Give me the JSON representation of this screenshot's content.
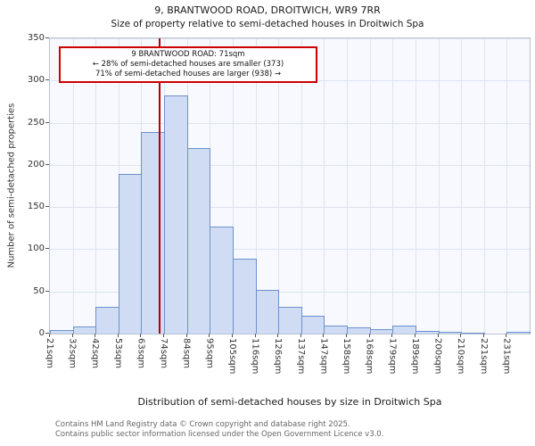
{
  "title": {
    "line1": "9, BRANTWOOD ROAD, DROITWICH, WR9 7RR",
    "line2": "Size of property relative to semi-detached houses in Droitwich Spa"
  },
  "annotation": {
    "line1": "9 BRANTWOOD ROAD: 71sqm",
    "line2": "← 28% of semi-detached houses are smaller (373)",
    "line3": "71% of semi-detached houses are larger (938) →"
  },
  "footer": {
    "line1": "Contains HM Land Registry data © Crown copyright and database right 2025.",
    "line2": "Contains public sector information licensed under the Open Government Licence v3.0."
  },
  "chart_data": {
    "type": "bar",
    "title": "9, BRANTWOOD ROAD, DROITWICH, WR9 7RR — Size of property relative to semi-detached houses in Droitwich Spa",
    "xlabel": "Distribution of semi-detached houses by size in Droitwich Spa",
    "ylabel": "Number of semi-detached properties",
    "categories": [
      "21sqm",
      "32sqm",
      "42sqm",
      "53sqm",
      "63sqm",
      "74sqm",
      "84sqm",
      "95sqm",
      "105sqm",
      "116sqm",
      "126sqm",
      "137sqm",
      "147sqm",
      "158sqm",
      "168sqm",
      "179sqm",
      "189sqm",
      "200sqm",
      "210sqm",
      "221sqm",
      "231sqm"
    ],
    "values": [
      4,
      8,
      32,
      189,
      239,
      282,
      220,
      127,
      89,
      52,
      32,
      21,
      10,
      7,
      5,
      10,
      3,
      2,
      1,
      0,
      2
    ],
    "ylim": [
      0,
      350
    ],
    "yticks": [
      0,
      50,
      100,
      150,
      200,
      250,
      300,
      350
    ],
    "grid": true,
    "legend": "none",
    "marker": {
      "value_sqm": 71,
      "label": "71sqm",
      "color": "#b30000",
      "smaller_pct": 28,
      "smaller_count": 373,
      "larger_pct": 71,
      "larger_count": 938
    },
    "bin_start_sqm": 21,
    "bin_width_sqm": 10.5,
    "bar_fill": "#cfdcf3",
    "bar_border": "#6d92cc"
  }
}
